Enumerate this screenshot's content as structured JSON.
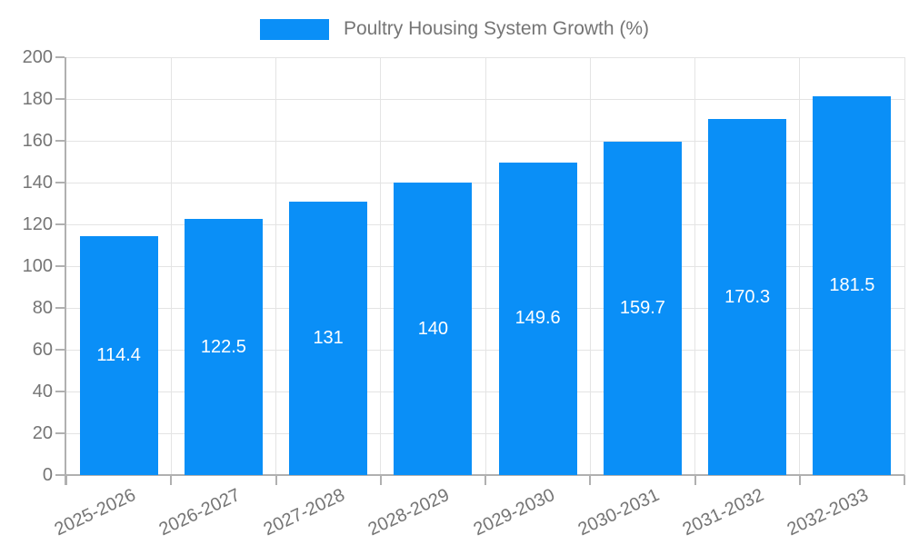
{
  "chart_data": {
    "type": "bar",
    "title": "",
    "legend": "Poultry Housing System Growth (%)",
    "legend_position": "top-center",
    "categories": [
      "2025-2026",
      "2026-2027",
      "2027-2028",
      "2028-2029",
      "2029-2030",
      "2030-2031",
      "2031-2032",
      "2032-2033"
    ],
    "values": [
      114.4,
      122.5,
      131,
      140,
      149.6,
      159.7,
      170.3,
      181.5
    ],
    "xlabel": "",
    "ylabel": "",
    "ylim": [
      0,
      200
    ],
    "yticks": [
      0,
      20,
      40,
      60,
      80,
      100,
      120,
      140,
      160,
      180,
      200
    ],
    "grid": true,
    "x_label_rotation_deg": -25,
    "colors": {
      "bar": "#0a8ff7",
      "bar_value_text": "#ffffff",
      "axis_text": "#757575",
      "axis_line": "#b0b0b0",
      "grid_line": "#e4e4e4",
      "background": "#ffffff"
    }
  }
}
